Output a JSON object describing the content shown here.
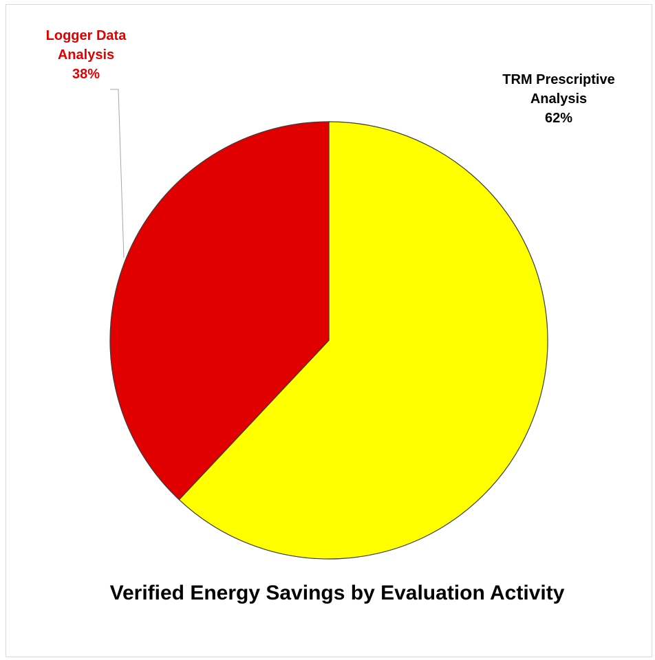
{
  "chart_data": {
    "type": "pie",
    "title": "Verified Energy Savings by Evaluation Activity",
    "categories": [
      "TRM Prescriptive Analysis",
      "Logger Data Analysis"
    ],
    "values": [
      62,
      38
    ],
    "value_labels": [
      "62%",
      "38%"
    ],
    "colors": [
      "#ffff00",
      "#e00000"
    ]
  }
}
